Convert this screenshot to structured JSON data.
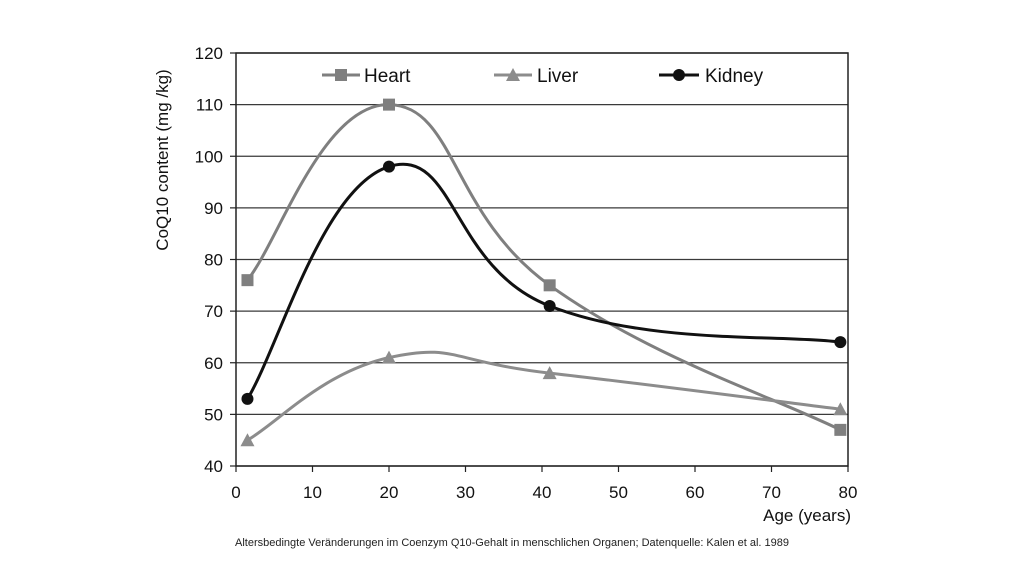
{
  "caption": "Altersbedingte Veränderungen im Coenzym Q10-Gehalt in menschlichen Organen; Datenquelle: Kalen et al. 1989",
  "chart_data": {
    "type": "line",
    "title": "",
    "xlabel": "Age (years)",
    "ylabel": "CoQ10 content (mg /kg)",
    "xlim": [
      0,
      80
    ],
    "ylim": [
      40,
      120
    ],
    "xticks": [
      0,
      10,
      20,
      30,
      40,
      50,
      60,
      70,
      80
    ],
    "yticks": [
      40,
      50,
      60,
      70,
      80,
      90,
      100,
      110,
      120
    ],
    "grid": "horizontal",
    "legend_position": "top",
    "series": [
      {
        "name": "Heart",
        "marker": "square",
        "color": "#7f7f7f",
        "x": [
          1.5,
          20,
          41,
          79
        ],
        "y": [
          76,
          110,
          75,
          47
        ]
      },
      {
        "name": "Liver",
        "marker": "triangle",
        "color": "#8c8c8c",
        "x": [
          1.5,
          20,
          41,
          79
        ],
        "y": [
          45,
          61,
          58,
          51
        ]
      },
      {
        "name": "Kidney",
        "marker": "circle",
        "color": "#111111",
        "x": [
          1.5,
          20,
          41,
          79
        ],
        "y": [
          53,
          98,
          71,
          64
        ]
      }
    ]
  }
}
